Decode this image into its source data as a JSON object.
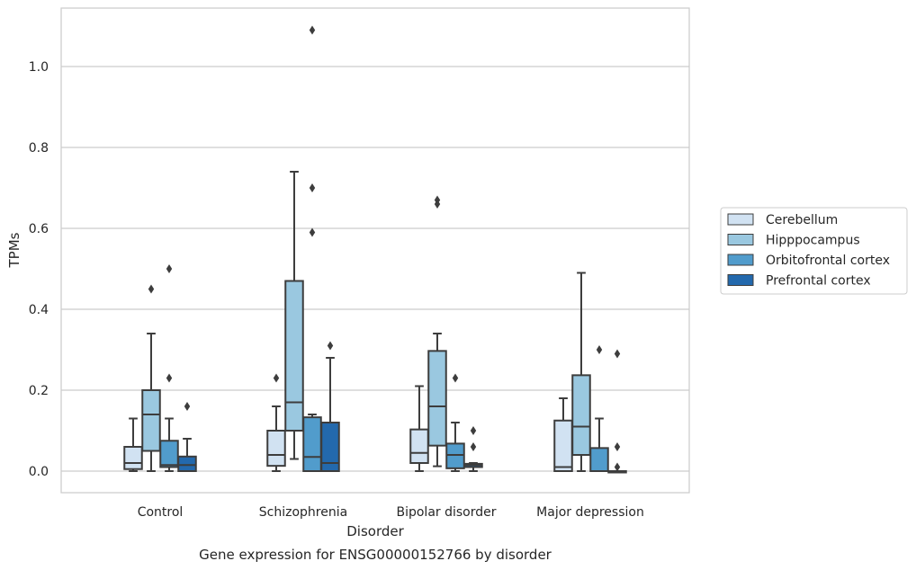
{
  "chart_data": {
    "type": "boxplot",
    "title": "",
    "caption": "Gene expression for ENSG00000152766 by disorder",
    "xlabel": "Disorder",
    "ylabel": "TPMs",
    "ylim": [
      -0.05,
      1.15
    ],
    "yticks": [
      0.0,
      0.2,
      0.4,
      0.6,
      0.8,
      1.0
    ],
    "ytick_labels": [
      "0.0",
      "0.2",
      "0.4",
      "0.6",
      "0.8",
      "1.0"
    ],
    "grid": "horizontal",
    "legend_position": "right",
    "categories": [
      "Control",
      "Schizophrenia",
      "Bipolar disorder",
      "Major depression"
    ],
    "series": [
      {
        "name": "Cerebellum",
        "color": "#d1e2f2",
        "boxes": [
          {
            "q1": 0.005,
            "median": 0.02,
            "q3": 0.06,
            "whislo": 0.0,
            "whishi": 0.13,
            "fliers": []
          },
          {
            "q1": 0.013,
            "median": 0.04,
            "q3": 0.1,
            "whislo": 0.0,
            "whishi": 0.16,
            "fliers": [
              0.23
            ]
          },
          {
            "q1": 0.02,
            "median": 0.045,
            "q3": 0.103,
            "whislo": 0.0,
            "whishi": 0.21,
            "fliers": []
          },
          {
            "q1": 0.0,
            "median": 0.01,
            "q3": 0.125,
            "whislo": 0.0,
            "whishi": 0.18,
            "fliers": []
          }
        ]
      },
      {
        "name": "Hipppocampus",
        "color": "#9ac8e0",
        "boxes": [
          {
            "q1": 0.05,
            "median": 0.14,
            "q3": 0.2,
            "whislo": 0.0,
            "whishi": 0.34,
            "fliers": [
              0.45
            ]
          },
          {
            "q1": 0.1,
            "median": 0.17,
            "q3": 0.47,
            "whislo": 0.03,
            "whishi": 0.74,
            "fliers": []
          },
          {
            "q1": 0.063,
            "median": 0.16,
            "q3": 0.297,
            "whislo": 0.012,
            "whishi": 0.34,
            "fliers": [
              0.66,
              0.67
            ]
          },
          {
            "q1": 0.04,
            "median": 0.11,
            "q3": 0.237,
            "whislo": 0.0,
            "whishi": 0.49,
            "fliers": []
          }
        ]
      },
      {
        "name": "Orbitofrontal cortex",
        "color": "#519ccc",
        "boxes": [
          {
            "q1": 0.01,
            "median": 0.015,
            "q3": 0.075,
            "whislo": 0.0,
            "whishi": 0.13,
            "fliers": [
              0.23,
              0.5
            ]
          },
          {
            "q1": 0.0,
            "median": 0.035,
            "q3": 0.133,
            "whislo": 0.0,
            "whishi": 0.14,
            "fliers": [
              0.59,
              0.7,
              1.09
            ]
          },
          {
            "q1": 0.007,
            "median": 0.04,
            "q3": 0.068,
            "whislo": 0.0,
            "whishi": 0.12,
            "fliers": [
              0.23
            ]
          },
          {
            "q1": 0.0,
            "median": 0.0,
            "q3": 0.057,
            "whislo": 0.0,
            "whishi": 0.13,
            "fliers": [
              0.3
            ]
          }
        ]
      },
      {
        "name": "Prefrontal cortex",
        "color": "#2369ad",
        "boxes": [
          {
            "q1": 0.0,
            "median": 0.015,
            "q3": 0.036,
            "whislo": 0.0,
            "whishi": 0.08,
            "fliers": [
              0.16
            ]
          },
          {
            "q1": 0.0,
            "median": 0.02,
            "q3": 0.12,
            "whislo": 0.0,
            "whishi": 0.28,
            "fliers": [
              0.31
            ]
          },
          {
            "q1": 0.01,
            "median": 0.015,
            "q3": 0.018,
            "whislo": 0.0,
            "whishi": 0.02,
            "fliers": [
              0.06,
              0.1
            ]
          },
          {
            "q1": 0.0,
            "median": 0.0,
            "q3": 0.0,
            "whislo": 0.0,
            "whishi": 0.0,
            "fliers": [
              0.01,
              0.06,
              0.29
            ]
          }
        ]
      }
    ]
  }
}
